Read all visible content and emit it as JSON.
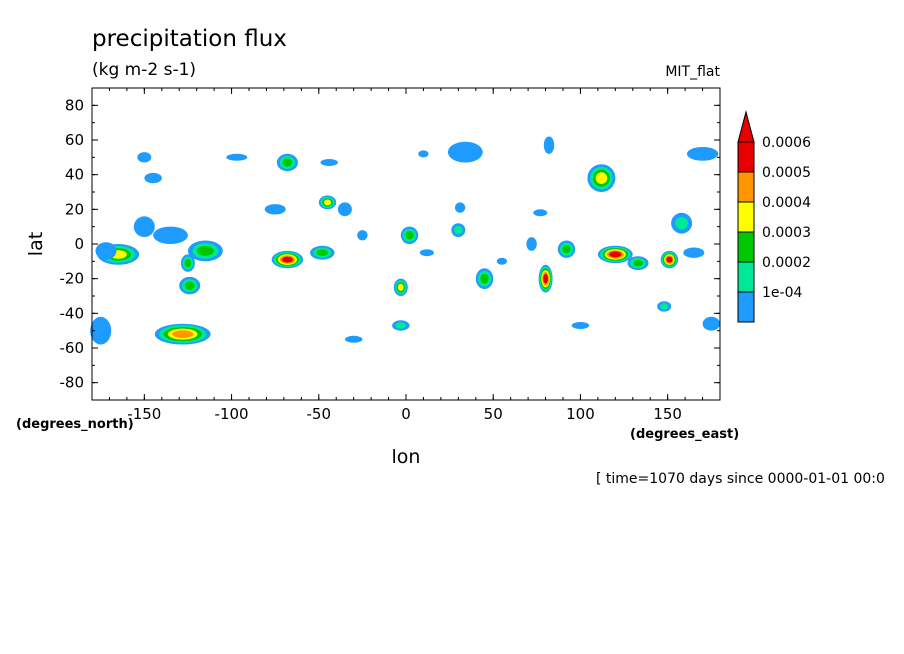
{
  "chart_data": {
    "type": "heatmap",
    "title": "precipitation flux",
    "units": "(kg m-2 s-1)",
    "dataset": "MIT_flat",
    "xlabel": "lon",
    "ylabel": "lat",
    "x_units": "(degrees_east)",
    "y_units": "(degrees_north)",
    "xlim": [
      -180,
      180
    ],
    "ylim": [
      -90,
      90
    ],
    "x_ticks": [
      -150,
      -100,
      -50,
      0,
      50,
      100,
      150
    ],
    "y_ticks": [
      80,
      60,
      40,
      20,
      0,
      -20,
      -40,
      -60,
      -80
    ],
    "footer": "[ time=1070 days since 0000-01-01 00:0",
    "colorbar": {
      "labels": [
        "0.0006",
        "0.0005",
        "0.0004",
        "0.0003",
        "0.0002",
        "1e-04"
      ],
      "levels": [
        0.0001,
        0.0002,
        0.0003,
        0.0004,
        0.0005,
        0.0006
      ],
      "colors": [
        "#1e9bff",
        "#00e896",
        "#00c800",
        "#ffff00",
        "#ff9600",
        "#e60000"
      ],
      "extend": "max"
    },
    "features": [
      {
        "lon": -165,
        "lat": -6,
        "rx": 12,
        "ry": 6,
        "level": 4
      },
      {
        "lon": -172,
        "lat": -4,
        "rx": 6,
        "ry": 5,
        "level": 1
      },
      {
        "lon": -150,
        "lat": 10,
        "rx": 6,
        "ry": 6,
        "level": 1
      },
      {
        "lon": -135,
        "lat": 5,
        "rx": 10,
        "ry": 5,
        "level": 1
      },
      {
        "lon": -115,
        "lat": -4,
        "rx": 10,
        "ry": 6,
        "level": 3
      },
      {
        "lon": -125,
        "lat": -11,
        "rx": 4,
        "ry": 5,
        "level": 3
      },
      {
        "lon": -124,
        "lat": -24,
        "rx": 6,
        "ry": 5,
        "level": 3
      },
      {
        "lon": -128,
        "lat": -52,
        "rx": 16,
        "ry": 6,
        "level": 5
      },
      {
        "lon": -175,
        "lat": -50,
        "rx": 6,
        "ry": 8,
        "level": 1
      },
      {
        "lon": -145,
        "lat": 38,
        "rx": 5,
        "ry": 3,
        "level": 1
      },
      {
        "lon": -150,
        "lat": 50,
        "rx": 4,
        "ry": 3,
        "level": 1
      },
      {
        "lon": -97,
        "lat": 50,
        "rx": 6,
        "ry": 2,
        "level": 1
      },
      {
        "lon": -68,
        "lat": 47,
        "rx": 6,
        "ry": 5,
        "level": 3
      },
      {
        "lon": -44,
        "lat": 47,
        "rx": 5,
        "ry": 2,
        "level": 1
      },
      {
        "lon": -45,
        "lat": 24,
        "rx": 5,
        "ry": 4,
        "level": 4
      },
      {
        "lon": -35,
        "lat": 20,
        "rx": 4,
        "ry": 4,
        "level": 1
      },
      {
        "lon": -75,
        "lat": 20,
        "rx": 6,
        "ry": 3,
        "level": 1
      },
      {
        "lon": -68,
        "lat": -9,
        "rx": 9,
        "ry": 5,
        "level": 6
      },
      {
        "lon": -48,
        "lat": -5,
        "rx": 7,
        "ry": 4,
        "level": 3
      },
      {
        "lon": -25,
        "lat": 5,
        "rx": 3,
        "ry": 3,
        "level": 1
      },
      {
        "lon": 2,
        "lat": 5,
        "rx": 5,
        "ry": 5,
        "level": 3
      },
      {
        "lon": -3,
        "lat": -25,
        "rx": 4,
        "ry": 5,
        "level": 4
      },
      {
        "lon": -3,
        "lat": -47,
        "rx": 5,
        "ry": 3,
        "level": 2
      },
      {
        "lon": 12,
        "lat": -5,
        "rx": 4,
        "ry": 2,
        "level": 1
      },
      {
        "lon": 30,
        "lat": 8,
        "rx": 4,
        "ry": 4,
        "level": 2
      },
      {
        "lon": 31,
        "lat": 21,
        "rx": 3,
        "ry": 3,
        "level": 1
      },
      {
        "lon": 34,
        "lat": 53,
        "rx": 10,
        "ry": 6,
        "level": 1
      },
      {
        "lon": 10,
        "lat": 52,
        "rx": 3,
        "ry": 2,
        "level": 1
      },
      {
        "lon": 45,
        "lat": -20,
        "rx": 5,
        "ry": 6,
        "level": 3
      },
      {
        "lon": 55,
        "lat": -10,
        "rx": 3,
        "ry": 2,
        "level": 1
      },
      {
        "lon": 80,
        "lat": -20,
        "rx": 4,
        "ry": 8,
        "level": 6
      },
      {
        "lon": 82,
        "lat": 57,
        "rx": 3,
        "ry": 5,
        "level": 1
      },
      {
        "lon": 77,
        "lat": 18,
        "rx": 4,
        "ry": 2,
        "level": 1
      },
      {
        "lon": 72,
        "lat": 0,
        "rx": 3,
        "ry": 4,
        "level": 1
      },
      {
        "lon": 92,
        "lat": -3,
        "rx": 5,
        "ry": 5,
        "level": 3
      },
      {
        "lon": 112,
        "lat": 38,
        "rx": 8,
        "ry": 8,
        "level": 4
      },
      {
        "lon": 120,
        "lat": -6,
        "rx": 10,
        "ry": 5,
        "level": 6
      },
      {
        "lon": 133,
        "lat": -11,
        "rx": 6,
        "ry": 4,
        "level": 3
      },
      {
        "lon": 151,
        "lat": -9,
        "rx": 5,
        "ry": 5,
        "level": 6
      },
      {
        "lon": 158,
        "lat": 12,
        "rx": 6,
        "ry": 6,
        "level": 2
      },
      {
        "lon": 170,
        "lat": 52,
        "rx": 9,
        "ry": 4,
        "level": 1
      },
      {
        "lon": 148,
        "lat": -36,
        "rx": 4,
        "ry": 3,
        "level": 2
      },
      {
        "lon": 175,
        "lat": -46,
        "rx": 5,
        "ry": 4,
        "level": 1
      },
      {
        "lon": 100,
        "lat": -47,
        "rx": 5,
        "ry": 2,
        "level": 1
      },
      {
        "lon": -30,
        "lat": -55,
        "rx": 5,
        "ry": 2,
        "level": 1
      },
      {
        "lon": 165,
        "lat": -5,
        "rx": 6,
        "ry": 3,
        "level": 1
      }
    ]
  }
}
